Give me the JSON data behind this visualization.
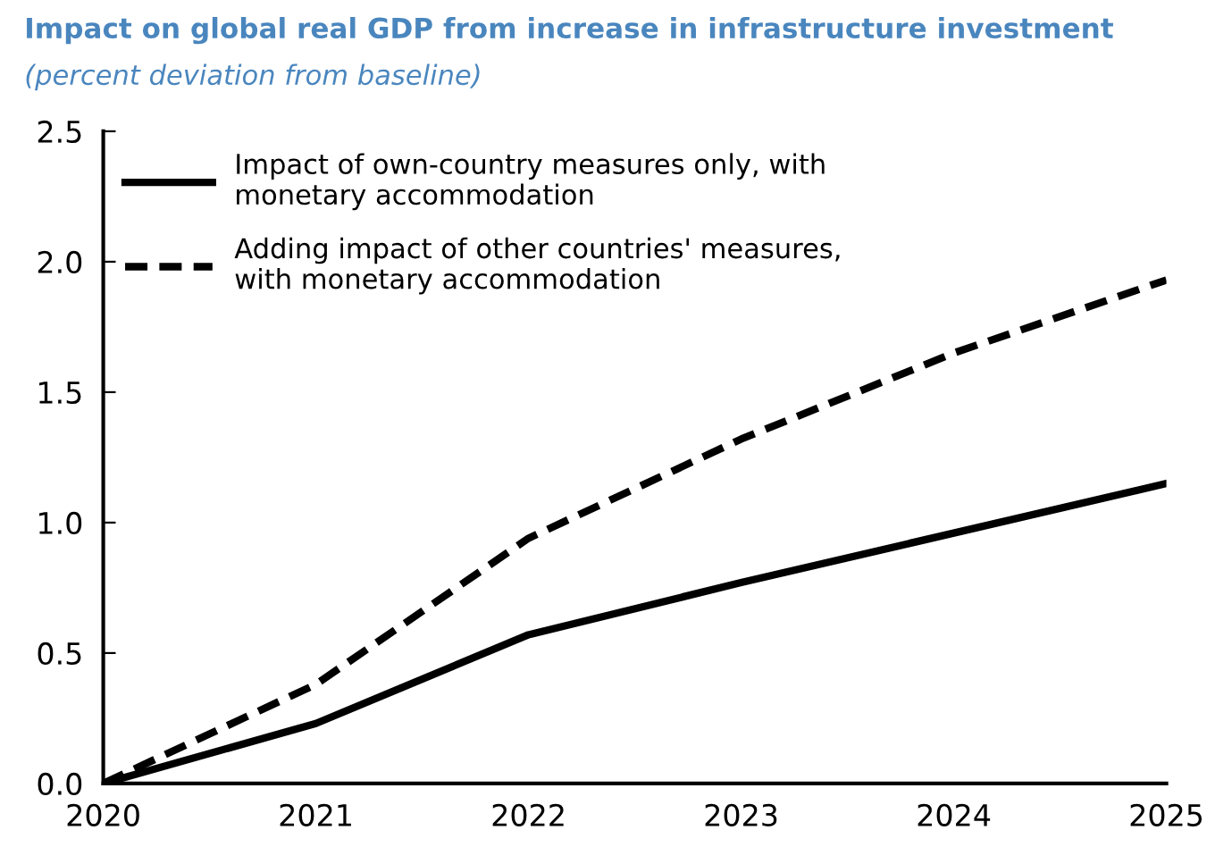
{
  "chart_data": {
    "type": "line",
    "title": "Impact on global real GDP from increase in infrastructure investment",
    "subtitle": "(percent deviation from baseline)",
    "x": [
      2020,
      2021,
      2022,
      2023,
      2024,
      2025
    ],
    "series": [
      {
        "name": "Impact of own-country measures only, with\nmonetary accommodation",
        "color": "#000000",
        "line_style": "solid",
        "values": [
          0,
          0.23,
          0.57,
          0.77,
          0.96,
          1.15
        ]
      },
      {
        "name": "Adding impact of other countries' measures,\nwith monetary accommodation",
        "color": "#000000",
        "line_style": "dashed",
        "values": [
          0,
          0.38,
          0.94,
          1.32,
          1.65,
          1.93
        ]
      }
    ],
    "xlim": [
      2020,
      2025
    ],
    "xticks": [
      2020,
      2021,
      2022,
      2023,
      2024,
      2025
    ],
    "ylim": [
      0,
      2.5
    ],
    "yticks": [
      {
        "value": 0,
        "label": "0.0"
      },
      {
        "value": 0.5,
        "label": "0.5"
      },
      {
        "value": 1,
        "label": "1.0"
      },
      {
        "value": 1.5,
        "label": "1.5"
      },
      {
        "value": 2,
        "label": "2.0"
      },
      {
        "value": 2.5,
        "label": "2.5"
      }
    ],
    "grid": false,
    "legend": "top left",
    "marker": "none"
  }
}
